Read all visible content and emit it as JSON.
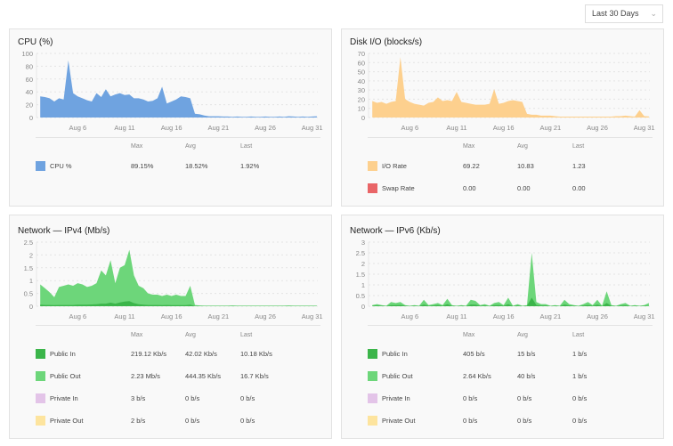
{
  "range_select": {
    "value": "Last 30 Days",
    "icon": "chevron-down-icon"
  },
  "headers": {
    "max": "Max",
    "avg": "Avg",
    "last": "Last"
  },
  "chart_data": [
    {
      "id": "cpu",
      "type": "area",
      "title": "CPU (%)",
      "xlim": [
        1.6,
        31.6
      ],
      "ylim": [
        0,
        100
      ],
      "grid": true,
      "yticks": [
        "0",
        "20",
        "40",
        "60",
        "80",
        "100"
      ],
      "ytick_values": [
        0,
        20,
        40,
        60,
        80,
        100
      ],
      "xticks": [
        "Aug 6",
        "Aug 11",
        "Aug 16",
        "Aug 21",
        "Aug 26",
        "Aug 31"
      ],
      "xtick_values": [
        6,
        11,
        16,
        21,
        26,
        31
      ],
      "x": [
        2,
        2.5,
        3,
        3.5,
        4,
        4.5,
        5,
        5.5,
        6,
        6.5,
        7,
        7.5,
        8,
        8.5,
        9,
        9.5,
        10,
        10.5,
        11,
        11.5,
        12,
        12.5,
        13,
        13.5,
        14,
        14.5,
        15,
        15.5,
        16,
        16.5,
        17,
        17.5,
        18,
        18.5,
        19,
        19.5,
        20,
        20.5,
        21,
        21.5,
        22,
        22.5,
        23,
        23.5,
        24,
        24.5,
        25,
        25.5,
        26,
        26.5,
        27,
        27.5,
        28,
        28.5,
        29,
        29.5,
        30,
        30.5,
        31,
        31.5
      ],
      "series": [
        {
          "name": "CPU %",
          "color": "#6fa3e0",
          "max": "89.15%",
          "avg": "18.52%",
          "last": "1.92%",
          "values": [
            33,
            32,
            30,
            25,
            30,
            28,
            89,
            38,
            33,
            30,
            27,
            25,
            38,
            32,
            44,
            33,
            36,
            38,
            35,
            36,
            30,
            30,
            28,
            25,
            26,
            30,
            48,
            22,
            25,
            28,
            33,
            32,
            30,
            6,
            5,
            3,
            2,
            2,
            2,
            1.5,
            1.5,
            1,
            1.5,
            1,
            1,
            1.5,
            1,
            1,
            1.5,
            1,
            1,
            1.5,
            1,
            2,
            1.5,
            1,
            1.5,
            1,
            1.5,
            1.9
          ]
        }
      ]
    },
    {
      "id": "disk",
      "type": "area",
      "title": "Disk I/O (blocks/s)",
      "xlim": [
        1.6,
        31.6
      ],
      "ylim": [
        0,
        70
      ],
      "grid": true,
      "yticks": [
        "0",
        "10",
        "20",
        "30",
        "40",
        "50",
        "60",
        "70"
      ],
      "ytick_values": [
        0,
        10,
        20,
        30,
        40,
        50,
        60,
        70
      ],
      "xticks": [
        "Aug 6",
        "Aug 11",
        "Aug 16",
        "Aug 21",
        "Aug 26",
        "Aug 31"
      ],
      "xtick_values": [
        6,
        11,
        16,
        21,
        26,
        31
      ],
      "x": [
        2,
        2.5,
        3,
        3.5,
        4,
        4.5,
        5,
        5.5,
        6,
        6.5,
        7,
        7.5,
        8,
        8.5,
        9,
        9.5,
        10,
        10.5,
        11,
        11.5,
        12,
        12.5,
        13,
        13.5,
        14,
        14.5,
        15,
        15.5,
        16,
        16.5,
        17,
        17.5,
        18,
        18.5,
        19,
        19.5,
        20,
        20.5,
        21,
        21.5,
        22,
        22.5,
        23,
        23.5,
        24,
        24.5,
        25,
        25.5,
        26,
        26.5,
        27,
        27.5,
        28,
        28.5,
        29,
        29.5,
        30,
        30.5,
        31,
        31.5
      ],
      "series": [
        {
          "name": "I/O Rate",
          "color": "#fdd08e",
          "max": "69.22",
          "avg": "10.83",
          "last": "1.23",
          "values": [
            18,
            16,
            17,
            15,
            17,
            18,
            66,
            20,
            17,
            15,
            14,
            13,
            16,
            17,
            22,
            18,
            19,
            18,
            28,
            17,
            16,
            15,
            14,
            14,
            14,
            15,
            31,
            15,
            16,
            18,
            19,
            18,
            17,
            4,
            3,
            3,
            2,
            2,
            2,
            1.5,
            1,
            1,
            1,
            1,
            1,
            1,
            1,
            1,
            1,
            1,
            1,
            1,
            1.5,
            1.5,
            2,
            1.5,
            1,
            8,
            1.5,
            1.2
          ]
        },
        {
          "name": "Swap Rate",
          "color": "#e96567",
          "max": "0.00",
          "avg": "0.00",
          "last": "0.00"
        }
      ]
    },
    {
      "id": "ipv4",
      "type": "area",
      "title": "Network — IPv4 (Mb/s)",
      "xlim": [
        1.6,
        31.6
      ],
      "ylim": [
        0,
        2.5
      ],
      "grid": true,
      "yticks": [
        "0",
        "0.5",
        "1",
        "1.5",
        "2",
        "2.5"
      ],
      "ytick_values": [
        0,
        0.5,
        1,
        1.5,
        2,
        2.5
      ],
      "xticks": [
        "Aug 6",
        "Aug 11",
        "Aug 16",
        "Aug 21",
        "Aug 26",
        "Aug 31"
      ],
      "xtick_values": [
        6,
        11,
        16,
        21,
        26,
        31
      ],
      "x": [
        2,
        2.5,
        3,
        3.5,
        4,
        4.5,
        5,
        5.5,
        6,
        6.5,
        7,
        7.5,
        8,
        8.5,
        9,
        9.5,
        10,
        10.5,
        11,
        11.5,
        12,
        12.5,
        13,
        13.5,
        14,
        14.5,
        15,
        15.5,
        16,
        16.5,
        17,
        17.5,
        18,
        18.5,
        19,
        19.5,
        20,
        20.5,
        21,
        21.5,
        22,
        22.5,
        23,
        23.5,
        24,
        24.5,
        25,
        25.5,
        26,
        26.5,
        27,
        27.5,
        28,
        28.5,
        29,
        29.5,
        30,
        30.5,
        31,
        31.5
      ],
      "series": [
        {
          "name": "Public Out",
          "color": "#6dd67a",
          "max": "2.23 Mb/s",
          "avg": "444.35 Kb/s",
          "last": "16.7 Kb/s",
          "values": [
            0.85,
            0.7,
            0.55,
            0.35,
            0.75,
            0.8,
            0.85,
            0.8,
            0.9,
            0.85,
            0.75,
            0.8,
            0.9,
            1.4,
            1.2,
            1.8,
            0.9,
            1.5,
            1.6,
            2.2,
            1.2,
            0.8,
            0.7,
            0.5,
            0.45,
            0.45,
            0.4,
            0.45,
            0.4,
            0.45,
            0.4,
            0.4,
            0.8,
            0.05,
            0.03,
            0.02,
            0.02,
            0.02,
            0.02,
            0.02,
            0.02,
            0.03,
            0.02,
            0.02,
            0.02,
            0.02,
            0.02,
            0.02,
            0.02,
            0.02,
            0.02,
            0.02,
            0.02,
            0.03,
            0.02,
            0.02,
            0.02,
            0.02,
            0.02,
            0.02
          ]
        },
        {
          "name": "Public In",
          "color": "#3bb54a",
          "max": "219.12 Kb/s",
          "avg": "42.02 Kb/s",
          "last": "10.18 Kb/s",
          "values": [
            0.06,
            0.05,
            0.05,
            0.04,
            0.05,
            0.05,
            0.05,
            0.05,
            0.06,
            0.06,
            0.06,
            0.07,
            0.08,
            0.1,
            0.1,
            0.14,
            0.1,
            0.15,
            0.18,
            0.2,
            0.12,
            0.08,
            0.06,
            0.05,
            0.05,
            0.05,
            0.04,
            0.05,
            0.04,
            0.04,
            0.04,
            0.04,
            0.06,
            0.01,
            0.01,
            0.01,
            0.01,
            0.01,
            0.01,
            0.01,
            0.01,
            0.01,
            0.01,
            0.01,
            0.01,
            0.01,
            0.01,
            0.01,
            0.01,
            0.01,
            0.01,
            0.01,
            0.01,
            0.01,
            0.01,
            0.01,
            0.01,
            0.01,
            0.01,
            0.01
          ]
        },
        {
          "name": "Private In",
          "color": "#e3c4e8",
          "max": "3 b/s",
          "avg": "0 b/s",
          "last": "0 b/s"
        },
        {
          "name": "Private Out",
          "color": "#fde49e",
          "max": "2 b/s",
          "avg": "0 b/s",
          "last": "0 b/s"
        }
      ]
    },
    {
      "id": "ipv6",
      "type": "area",
      "title": "Network — IPv6 (Kb/s)",
      "xlim": [
        1.6,
        31.6
      ],
      "ylim": [
        0,
        3
      ],
      "grid": true,
      "yticks": [
        "0",
        "0.5",
        "1",
        "1.5",
        "2",
        "2.5",
        "3"
      ],
      "ytick_values": [
        0,
        0.5,
        1,
        1.5,
        2,
        2.5,
        3
      ],
      "xticks": [
        "Aug 6",
        "Aug 11",
        "Aug 16",
        "Aug 21",
        "Aug 26",
        "Aug 31"
      ],
      "xtick_values": [
        6,
        11,
        16,
        21,
        26,
        31
      ],
      "x": [
        2,
        2.5,
        3,
        3.5,
        4,
        4.5,
        5,
        5.5,
        6,
        6.5,
        7,
        7.5,
        8,
        8.5,
        9,
        9.5,
        10,
        10.5,
        11,
        11.5,
        12,
        12.5,
        13,
        13.5,
        14,
        14.5,
        15,
        15.5,
        16,
        16.5,
        17,
        17.5,
        18,
        18.5,
        19,
        19.5,
        20,
        20.5,
        21,
        21.5,
        22,
        22.5,
        23,
        23.5,
        24,
        24.5,
        25,
        25.5,
        26,
        26.5,
        27,
        27.5,
        28,
        28.5,
        29,
        29.5,
        30,
        30.5,
        31,
        31.5
      ],
      "series": [
        {
          "name": "Public Out",
          "color": "#6dd67a",
          "max": "2.64 Kb/s",
          "avg": "40 b/s",
          "last": "1 b/s",
          "values": [
            0.05,
            0.1,
            0.05,
            0.02,
            0.2,
            0.15,
            0.2,
            0.05,
            0.02,
            0.05,
            0.02,
            0.3,
            0.05,
            0.1,
            0.15,
            0.05,
            0.35,
            0.05,
            0.02,
            0.05,
            0.02,
            0.3,
            0.25,
            0.05,
            0.1,
            0.02,
            0.15,
            0.2,
            0.05,
            0.4,
            0.02,
            0.1,
            0.02,
            0.05,
            2.5,
            0.2,
            0.1,
            0.1,
            0.02,
            0.05,
            0.02,
            0.3,
            0.1,
            0.05,
            0.02,
            0.1,
            0.2,
            0.05,
            0.3,
            0.02,
            0.7,
            0.05,
            0.02,
            0.1,
            0.15,
            0.02,
            0.05,
            0.02,
            0.05,
            0.15
          ]
        },
        {
          "name": "Public In",
          "color": "#3bb54a",
          "max": "405 b/s",
          "avg": "15 b/s",
          "last": "1 b/s",
          "values": [
            0.02,
            0.03,
            0.02,
            0.01,
            0.05,
            0.05,
            0.06,
            0.02,
            0.01,
            0.02,
            0.01,
            0.08,
            0.02,
            0.03,
            0.05,
            0.02,
            0.1,
            0.02,
            0.01,
            0.02,
            0.01,
            0.08,
            0.07,
            0.02,
            0.03,
            0.01,
            0.05,
            0.06,
            0.02,
            0.1,
            0.01,
            0.03,
            0.01,
            0.02,
            0.4,
            0.06,
            0.03,
            0.03,
            0.01,
            0.02,
            0.01,
            0.08,
            0.03,
            0.02,
            0.01,
            0.03,
            0.06,
            0.02,
            0.08,
            0.01,
            0.15,
            0.02,
            0.01,
            0.03,
            0.04,
            0.01,
            0.02,
            0.01,
            0.02,
            0.01
          ]
        },
        {
          "name": "Private In",
          "color": "#e3c4e8",
          "max": "0 b/s",
          "avg": "0 b/s",
          "last": "0 b/s"
        },
        {
          "name": "Private Out",
          "color": "#fde49e",
          "max": "0 b/s",
          "avg": "0 b/s",
          "last": "0 b/s"
        }
      ]
    }
  ]
}
